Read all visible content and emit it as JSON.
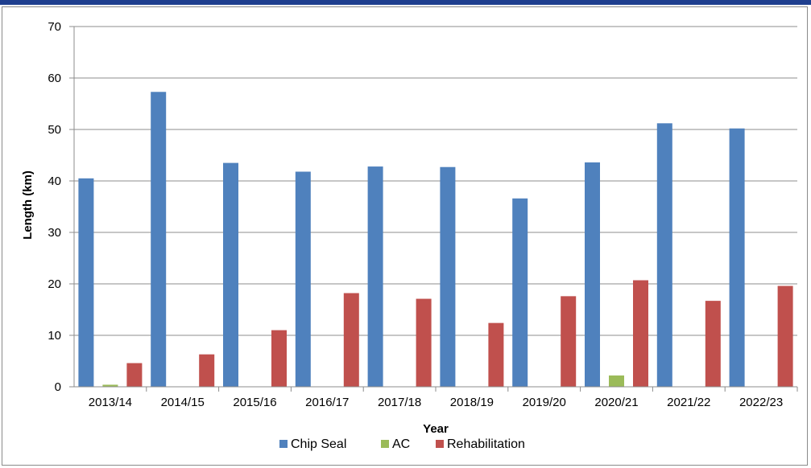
{
  "chart_data": {
    "type": "bar",
    "title": "",
    "xlabel": "Year",
    "ylabel": "Length (km)",
    "ylim": [
      0,
      70
    ],
    "yticks": [
      0,
      10,
      20,
      30,
      40,
      50,
      60,
      70
    ],
    "grid": true,
    "legend_position": "bottom",
    "categories": [
      "2013/14",
      "2014/15",
      "2015/16",
      "2016/17",
      "2017/18",
      "2018/19",
      "2019/20",
      "2020/21",
      "2021/22",
      "2022/23"
    ],
    "series": [
      {
        "name": "Chip Seal",
        "color": "#4f81bd",
        "values": [
          40.5,
          57.3,
          43.5,
          41.8,
          42.8,
          42.7,
          36.6,
          43.6,
          51.2,
          50.2
        ]
      },
      {
        "name": "AC",
        "color": "#9bbb59",
        "values": [
          0.4,
          0,
          0,
          0,
          0,
          0,
          0,
          2.2,
          0,
          0
        ]
      },
      {
        "name": "Rehabilitation",
        "color": "#c0504d",
        "values": [
          4.6,
          6.3,
          11.0,
          18.2,
          17.1,
          12.4,
          17.6,
          20.7,
          16.7,
          19.6
        ]
      }
    ]
  }
}
